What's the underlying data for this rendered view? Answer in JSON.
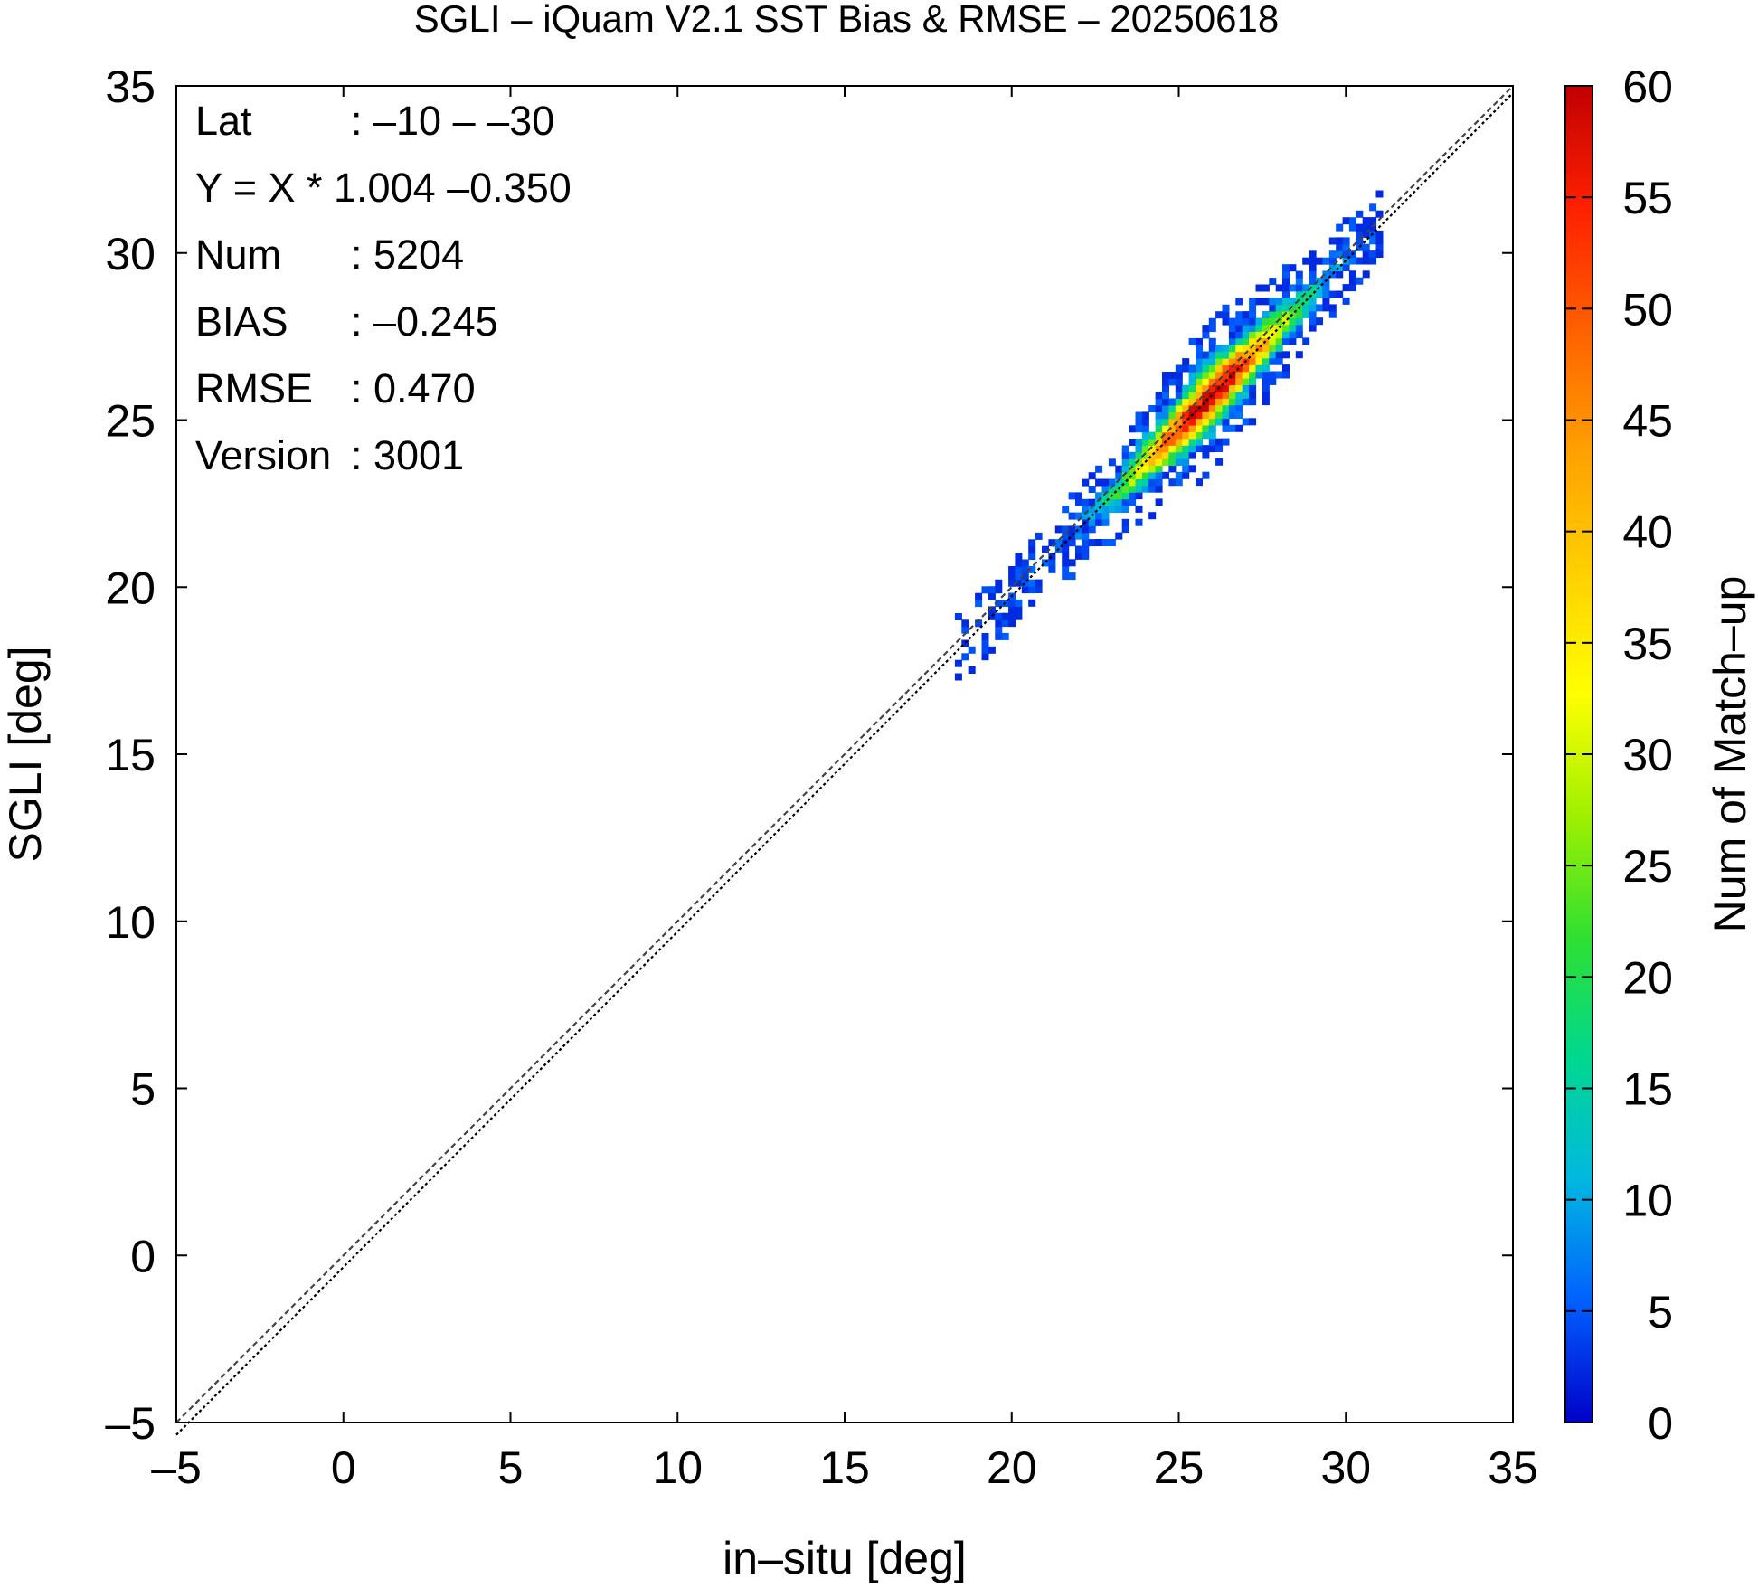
{
  "chart_data": {
    "type": "heatmap",
    "title": "SGLI – iQuam V2.1 SST Bias & RMSE  – 20250618",
    "xlabel": "in–situ [deg]",
    "ylabel": "SGLI [deg]",
    "xlim": [
      -5,
      35
    ],
    "ylim": [
      -5,
      35
    ],
    "x_ticks": [
      "–5",
      "0",
      "5",
      "10",
      "15",
      "20",
      "25",
      "30",
      "35"
    ],
    "y_ticks": [
      "–5",
      "0",
      "5",
      "10",
      "15",
      "20",
      "25",
      "30",
      "35"
    ],
    "grid": false,
    "reference_lines": [
      {
        "name": "1:1",
        "slope": 1.0,
        "intercept": 0.0,
        "color": "#444444",
        "style": "dashed"
      },
      {
        "name": "fit",
        "slope": 1.004,
        "intercept": -0.35,
        "color": "#000000",
        "style": "dotted"
      }
    ],
    "density": {
      "x_range": [
        18.3,
        31.0
      ],
      "slope": 1.004,
      "intercept": -0.35,
      "peak_x": 25.8,
      "max_count": 60,
      "total": 5204
    },
    "colorbar": {
      "label": "Num of Match–up",
      "min": 0,
      "max": 60,
      "ticks": [
        "0",
        "5",
        "10",
        "15",
        "20",
        "25",
        "30",
        "35",
        "40",
        "45",
        "50",
        "55",
        "60"
      ],
      "colors": [
        "#0000c8",
        "#0060ff",
        "#00b8e0",
        "#00d890",
        "#30e030",
        "#a0f000",
        "#ffff00",
        "#ffd000",
        "#ffa000",
        "#ff6000",
        "#ff2000",
        "#c00000"
      ]
    },
    "annotations": [
      {
        "key": "Lat",
        "value": ": –10 – –30"
      },
      {
        "key": "Y = X * 1.004 –0.350",
        "value": ""
      },
      {
        "key": "Num",
        "value": ": 5204"
      },
      {
        "key": "BIAS",
        "value": ": –0.245"
      },
      {
        "key": "RMSE",
        "value": ": 0.470"
      },
      {
        "key": "Version",
        "value": ": 3001"
      }
    ]
  }
}
